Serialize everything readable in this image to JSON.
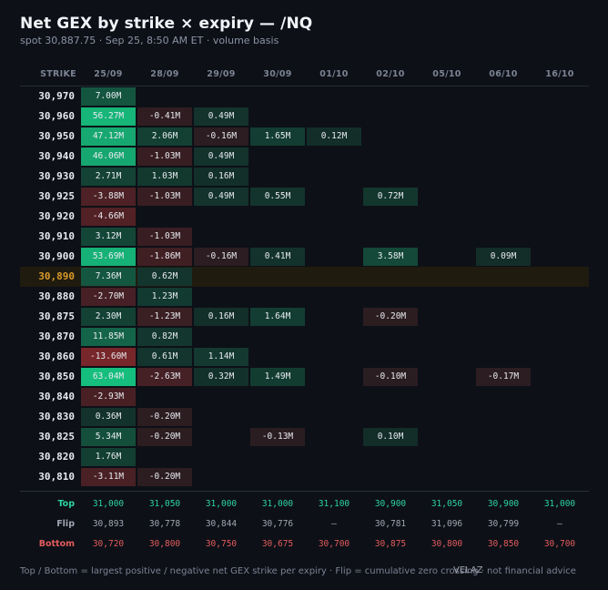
{
  "title": "Net GEX by strike × expiry — /NQ",
  "subtitle": "spot 30,887.75  ·  Sep 25, 8:50 AM ET  ·  volume basis",
  "strike_header": "STRIKE",
  "expiries": [
    "25/09",
    "28/09",
    "29/09",
    "30/09",
    "01/10",
    "02/10",
    "05/10",
    "06/10",
    "16/10"
  ],
  "rows": [
    {
      "strike": "30,970",
      "cells": [
        "7.00M",
        "",
        "",
        "",
        "",
        "",
        "",
        "",
        ""
      ]
    },
    {
      "strike": "30,960",
      "cells": [
        "56.27M",
        "-0.41M",
        "0.49M",
        "",
        "",
        "",
        "",
        "",
        ""
      ]
    },
    {
      "strike": "30,950",
      "cells": [
        "47.12M",
        "2.06M",
        "-0.16M",
        "1.65M",
        "0.12M",
        "",
        "",
        "",
        ""
      ]
    },
    {
      "strike": "30,940",
      "cells": [
        "46.06M",
        "-1.03M",
        "0.49M",
        "",
        "",
        "",
        "",
        "",
        ""
      ]
    },
    {
      "strike": "30,930",
      "cells": [
        "2.71M",
        "1.03M",
        "0.16M",
        "",
        "",
        "",
        "",
        "",
        ""
      ]
    },
    {
      "strike": "30,925",
      "cells": [
        "-3.88M",
        "-1.03M",
        "0.49M",
        "0.55M",
        "",
        "0.72M",
        "",
        "",
        ""
      ]
    },
    {
      "strike": "30,920",
      "cells": [
        "-4.66M",
        "",
        "",
        "",
        "",
        "",
        "",
        "",
        ""
      ]
    },
    {
      "strike": "30,910",
      "cells": [
        "3.12M",
        "-1.03M",
        "",
        "",
        "",
        "",
        "",
        "",
        ""
      ]
    },
    {
      "strike": "30,900",
      "cells": [
        "53.69M",
        "-1.86M",
        "-0.16M",
        "0.41M",
        "",
        "3.58M",
        "",
        "0.09M",
        ""
      ]
    },
    {
      "strike": "30,890",
      "spot": true,
      "cells": [
        "7.36M",
        "0.62M",
        "",
        "",
        "",
        "",
        "",
        "",
        ""
      ]
    },
    {
      "strike": "30,880",
      "cells": [
        "-2.70M",
        "1.23M",
        "",
        "",
        "",
        "",
        "",
        "",
        ""
      ]
    },
    {
      "strike": "30,875",
      "cells": [
        "2.30M",
        "-1.23M",
        "0.16M",
        "1.64M",
        "",
        "-0.20M",
        "",
        "",
        ""
      ]
    },
    {
      "strike": "30,870",
      "cells": [
        "11.85M",
        "0.82M",
        "",
        "",
        "",
        "",
        "",
        "",
        ""
      ]
    },
    {
      "strike": "30,860",
      "cells": [
        "-13.60M",
        "0.61M",
        "1.14M",
        "",
        "",
        "",
        "",
        "",
        ""
      ]
    },
    {
      "strike": "30,850",
      "cells": [
        "63.04M",
        "-2.63M",
        "0.32M",
        "1.49M",
        "",
        "-0.10M",
        "",
        "-0.17M",
        ""
      ]
    },
    {
      "strike": "30,840",
      "cells": [
        "-2.93M",
        "",
        "",
        "",
        "",
        "",
        "",
        "",
        ""
      ]
    },
    {
      "strike": "30,830",
      "cells": [
        "0.36M",
        "-0.20M",
        "",
        "",
        "",
        "",
        "",
        "",
        ""
      ]
    },
    {
      "strike": "30,825",
      "cells": [
        "5.34M",
        "-0.20M",
        "",
        "-0.13M",
        "",
        "0.10M",
        "",
        "",
        ""
      ]
    },
    {
      "strike": "30,820",
      "cells": [
        "1.76M",
        "",
        "",
        "",
        "",
        "",
        "",
        "",
        ""
      ]
    },
    {
      "strike": "30,810",
      "cells": [
        "-3.11M",
        "-0.20M",
        "",
        "",
        "",
        "",
        "",
        "",
        ""
      ]
    }
  ],
  "summary": {
    "top": {
      "label": "Top",
      "values": [
        "31,000",
        "31,050",
        "31,000",
        "31,000",
        "31,100",
        "30,900",
        "31,050",
        "30,900",
        "31,000"
      ]
    },
    "flip": {
      "label": "Flip",
      "values": [
        "30,893",
        "30,778",
        "30,844",
        "30,776",
        "—",
        "30,781",
        "31,096",
        "30,799",
        "—"
      ]
    },
    "bottom": {
      "label": "Bottom",
      "values": [
        "30,720",
        "30,800",
        "30,750",
        "30,675",
        "30,700",
        "30,875",
        "30,800",
        "30,850",
        "30,700"
      ]
    }
  },
  "colors": {
    "positive": "#2dd4a0",
    "negative": "#e25c5c",
    "flip": "#a0a6b2",
    "spot": "#d99a2b"
  },
  "footer": "Top / Bottom = largest positive / negative net GEX strike per expiry  ·  Flip = cumulative zero crossing  ·  not financial advice",
  "watermark": "VELAZ"
}
